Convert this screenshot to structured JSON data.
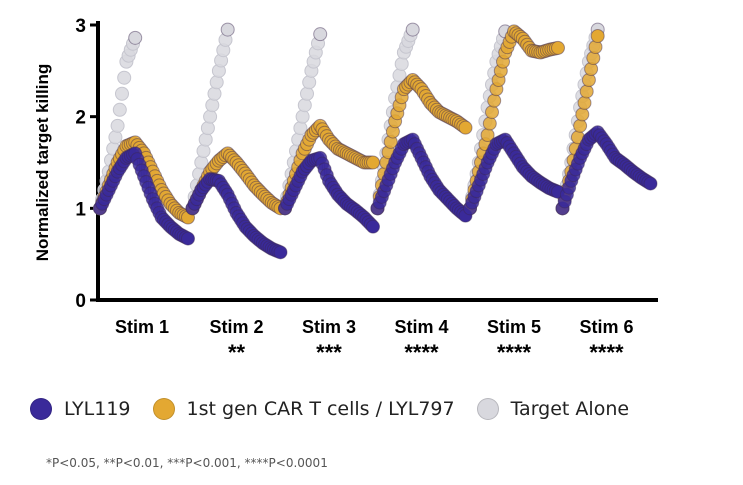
{
  "chart_data": {
    "type": "scatter",
    "title": "",
    "ylabel": "Normalized target killing",
    "xlabel": "",
    "ylim": [
      0,
      3
    ],
    "yticks": [
      "0",
      "1",
      "2",
      "3"
    ],
    "grid": false,
    "legend_placement": "bottom",
    "categories": [
      "Stim 1",
      "Stim 2",
      "Stim 3",
      "Stim 4",
      "Stim 5",
      "Stim 6"
    ],
    "significance": [
      "",
      "**",
      "***",
      "****",
      "****",
      "****"
    ],
    "series": [
      {
        "name": "LYL119",
        "color": "#3a2a9a",
        "values": [
          [
            1.0,
            1.2,
            1.4,
            1.55,
            1.6,
            1.35,
            1.1,
            0.9,
            0.8,
            0.72,
            0.67
          ],
          [
            1.0,
            1.2,
            1.32,
            1.3,
            1.15,
            0.95,
            0.8,
            0.7,
            0.62,
            0.56,
            0.52
          ],
          [
            1.0,
            1.2,
            1.4,
            1.52,
            1.55,
            1.3,
            1.15,
            1.05,
            0.98,
            0.9,
            0.8
          ],
          [
            1.0,
            1.25,
            1.5,
            1.7,
            1.75,
            1.55,
            1.35,
            1.2,
            1.1,
            1.0,
            0.92
          ],
          [
            1.0,
            1.25,
            1.5,
            1.7,
            1.75,
            1.6,
            1.45,
            1.35,
            1.28,
            1.22,
            1.18
          ],
          [
            1.0,
            1.3,
            1.55,
            1.75,
            1.83,
            1.7,
            1.55,
            1.48,
            1.4,
            1.33,
            1.27
          ]
        ]
      },
      {
        "name": "1st gen CAR T cells / LYL797",
        "color": "#e3a832",
        "values": [
          [
            1.0,
            1.25,
            1.5,
            1.68,
            1.72,
            1.6,
            1.4,
            1.2,
            1.05,
            0.95,
            0.9
          ],
          [
            1.0,
            1.2,
            1.4,
            1.52,
            1.6,
            1.5,
            1.38,
            1.25,
            1.15,
            1.06,
            1.0
          ],
          [
            1.0,
            1.3,
            1.6,
            1.8,
            1.9,
            1.75,
            1.65,
            1.6,
            1.55,
            1.5,
            1.5
          ],
          [
            1.0,
            1.5,
            1.95,
            2.3,
            2.4,
            2.3,
            2.15,
            2.05,
            2.0,
            1.95,
            1.88
          ],
          [
            1.0,
            1.4,
            1.8,
            2.3,
            2.7,
            2.93,
            2.85,
            2.72,
            2.7,
            2.73,
            2.75
          ],
          [
            1.0,
            1.4,
            1.9,
            2.4,
            2.88
          ]
        ]
      },
      {
        "name": "Target Alone",
        "color": "#d8d8de",
        "values": [
          [
            1.0,
            1.4,
            1.9,
            2.6,
            2.86
          ],
          [
            1.0,
            1.5,
            2.0,
            2.5,
            2.95
          ],
          [
            1.0,
            1.5,
            2.0,
            2.5,
            2.9
          ],
          [
            1.0,
            1.6,
            2.2,
            2.7,
            2.95
          ],
          [
            1.0,
            1.5,
            2.1,
            2.6,
            2.93
          ],
          [
            1.0,
            1.5,
            2.1,
            2.6,
            2.95
          ]
        ]
      }
    ]
  },
  "footnote": "*P<0.05, **P<0.01, ***P<0.001, ****P<0.0001"
}
